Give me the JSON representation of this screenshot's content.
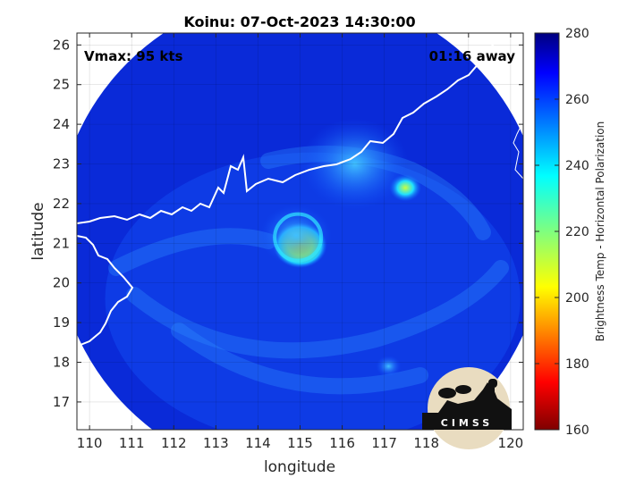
{
  "chart_data": {
    "type": "heatmap",
    "title": "Koinu: 07-Oct-2023 14:30:00",
    "xlabel": "longitude",
    "ylabel": "latitude",
    "xlim": [
      109.7,
      120.3
    ],
    "ylim": [
      16.3,
      26.3
    ],
    "x_ticks": [
      110,
      111,
      112,
      113,
      114,
      115,
      116,
      117,
      118,
      119,
      120
    ],
    "y_ticks": [
      17,
      18,
      19,
      20,
      21,
      22,
      23,
      24,
      25,
      26
    ],
    "grid": true,
    "annotations": {
      "vmax": "Vmax: 95 kts",
      "time_offset": "01:16 away"
    },
    "colorbar": {
      "label": "Brightness Temp - Horizontal Polarization",
      "range": [
        160,
        280
      ],
      "ticks": [
        160,
        180,
        200,
        220,
        240,
        260,
        280
      ],
      "colormap": "jet"
    },
    "swath": {
      "center": [
        115.0,
        21.2
      ],
      "radius_deg": 5.8,
      "background_value": 268
    },
    "features": [
      {
        "name": "eye",
        "lon": 115.0,
        "lat": 20.95,
        "value": 210
      },
      {
        "name": "eyewall",
        "lon": 114.9,
        "lat": 21.2,
        "value": 238
      },
      {
        "name": "convection-east",
        "lon": 117.5,
        "lat": 22.4,
        "value": 222
      },
      {
        "name": "rainband-north",
        "lon": 116.3,
        "lat": 23.0,
        "value": 245
      },
      {
        "name": "rainband-south",
        "lon": 117.1,
        "lat": 17.9,
        "value": 240
      }
    ],
    "coastline_color": "#ffffff",
    "logo": "CIMSS"
  }
}
